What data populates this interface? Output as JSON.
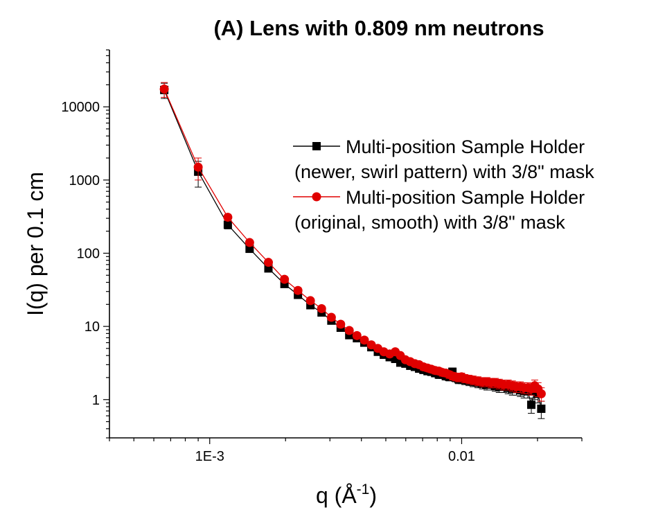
{
  "chart_data": {
    "type": "scatter",
    "title": "(A) Lens with 0.809 nm neutrons",
    "xlabel": "q (Å",
    "xlabel_sup": "-1",
    "xlabel_close": ")",
    "ylabel": "I(q) per 0.1 cm",
    "xscale": "log",
    "yscale": "log",
    "xlim": [
      0.0004,
      0.03
    ],
    "ylim": [
      0.3,
      60000
    ],
    "xticks": [
      {
        "value": 0.001,
        "label": "1E-3"
      },
      {
        "value": 0.01,
        "label": "0.01"
      }
    ],
    "yticks": [
      {
        "value": 1,
        "label": "1"
      },
      {
        "value": 10,
        "label": "10"
      },
      {
        "value": 100,
        "label": "100"
      },
      {
        "value": 1000,
        "label": "1000"
      },
      {
        "value": 10000,
        "label": "10000"
      }
    ],
    "grid": false,
    "legend_position": "upper-right",
    "series": [
      {
        "name_line1": "Multi-position Sample Holder",
        "name_line2": "(newer, swirl pattern) with 3/8\" mask",
        "color": "#000000",
        "marker": "square",
        "x": [
          0.00066,
          0.0009,
          0.00118,
          0.00144,
          0.00171,
          0.00198,
          0.00224,
          0.00251,
          0.00278,
          0.00304,
          0.00331,
          0.00358,
          0.00384,
          0.00411,
          0.00438,
          0.00465,
          0.00491,
          0.00518,
          0.00545,
          0.00571,
          0.00598,
          0.00625,
          0.00652,
          0.00678,
          0.00705,
          0.00732,
          0.00758,
          0.00785,
          0.00812,
          0.00839,
          0.00865,
          0.00892,
          0.00919,
          0.00945,
          0.00972,
          0.00999,
          0.0103,
          0.0107,
          0.0111,
          0.0116,
          0.0121,
          0.0126,
          0.0131,
          0.0136,
          0.0141,
          0.0147,
          0.0153,
          0.0159,
          0.0165,
          0.0171,
          0.0177,
          0.0183,
          0.0189,
          0.0195,
          0.0201,
          0.0207
        ],
        "y": [
          17000,
          1300,
          245,
          115,
          62,
          38,
          27,
          19.5,
          15.5,
          12,
          9.6,
          7.6,
          6.9,
          6.0,
          5.2,
          4.5,
          4.1,
          3.8,
          3.6,
          3.2,
          3.1,
          2.9,
          2.8,
          2.65,
          2.55,
          2.45,
          2.4,
          2.3,
          2.2,
          2.2,
          2.1,
          2.05,
          2.4,
          2.0,
          1.9,
          1.9,
          1.85,
          1.8,
          1.75,
          1.7,
          1.65,
          1.6,
          1.6,
          1.55,
          1.5,
          1.5,
          1.45,
          1.4,
          1.4,
          1.35,
          1.3,
          1.3,
          0.85,
          1.3,
          1.2,
          0.75
        ],
        "err": [
          4000,
          500,
          30,
          12,
          6,
          4,
          3,
          2,
          1.5,
          1.2,
          1,
          0.8,
          0.7,
          0.6,
          0.5,
          0.45,
          0.4,
          0.38,
          0.35,
          0.32,
          0.3,
          0.3,
          0.3,
          0.28,
          0.28,
          0.27,
          0.27,
          0.26,
          0.26,
          0.26,
          0.25,
          0.25,
          0.3,
          0.25,
          0.25,
          0.25,
          0.25,
          0.25,
          0.25,
          0.25,
          0.25,
          0.25,
          0.25,
          0.25,
          0.25,
          0.25,
          0.25,
          0.25,
          0.25,
          0.25,
          0.25,
          0.25,
          0.2,
          0.3,
          0.3,
          0.2
        ]
      },
      {
        "name_line1": "Multi-position Sample Holder",
        "name_line2": "(original, smooth) with 3/8\" mask",
        "color": "#e00000",
        "marker": "circle",
        "x": [
          0.00066,
          0.0009,
          0.00118,
          0.00144,
          0.00171,
          0.00198,
          0.00224,
          0.00251,
          0.00278,
          0.00304,
          0.00331,
          0.00358,
          0.00384,
          0.00411,
          0.00438,
          0.00465,
          0.00491,
          0.00518,
          0.00545,
          0.00571,
          0.00598,
          0.00625,
          0.00652,
          0.00678,
          0.00705,
          0.00732,
          0.00758,
          0.00785,
          0.00812,
          0.00839,
          0.00865,
          0.00892,
          0.00919,
          0.00945,
          0.00972,
          0.00999,
          0.0103,
          0.0107,
          0.0111,
          0.0116,
          0.0121,
          0.0126,
          0.0131,
          0.0136,
          0.0141,
          0.0147,
          0.0153,
          0.0159,
          0.0165,
          0.0171,
          0.0177,
          0.0183,
          0.0189,
          0.0195,
          0.0201,
          0.0207
        ],
        "y": [
          17500,
          1500,
          310,
          140,
          75,
          44,
          31,
          22.5,
          17.5,
          13.3,
          10.7,
          8.8,
          7.5,
          6.5,
          5.6,
          5.0,
          4.5,
          4.2,
          4.5,
          4.0,
          3.5,
          3.3,
          3.1,
          3.0,
          2.8,
          2.7,
          2.6,
          2.5,
          2.45,
          2.35,
          2.3,
          2.2,
          2.1,
          2.05,
          2.0,
          2.05,
          1.95,
          1.9,
          1.85,
          1.8,
          1.75,
          1.75,
          1.7,
          1.7,
          1.65,
          1.6,
          1.6,
          1.55,
          1.5,
          1.5,
          1.45,
          1.45,
          1.4,
          1.55,
          1.4,
          1.2
        ],
        "err": [
          4000,
          500,
          30,
          12,
          6,
          4,
          3,
          2,
          1.5,
          1.2,
          1,
          0.8,
          0.7,
          0.6,
          0.5,
          0.45,
          0.4,
          0.38,
          0.4,
          0.35,
          0.3,
          0.3,
          0.3,
          0.28,
          0.28,
          0.27,
          0.27,
          0.26,
          0.26,
          0.26,
          0.25,
          0.25,
          0.25,
          0.25,
          0.25,
          0.25,
          0.25,
          0.25,
          0.25,
          0.25,
          0.25,
          0.25,
          0.25,
          0.25,
          0.25,
          0.25,
          0.25,
          0.25,
          0.25,
          0.25,
          0.25,
          0.25,
          0.25,
          0.3,
          0.3,
          0.25
        ]
      }
    ]
  }
}
